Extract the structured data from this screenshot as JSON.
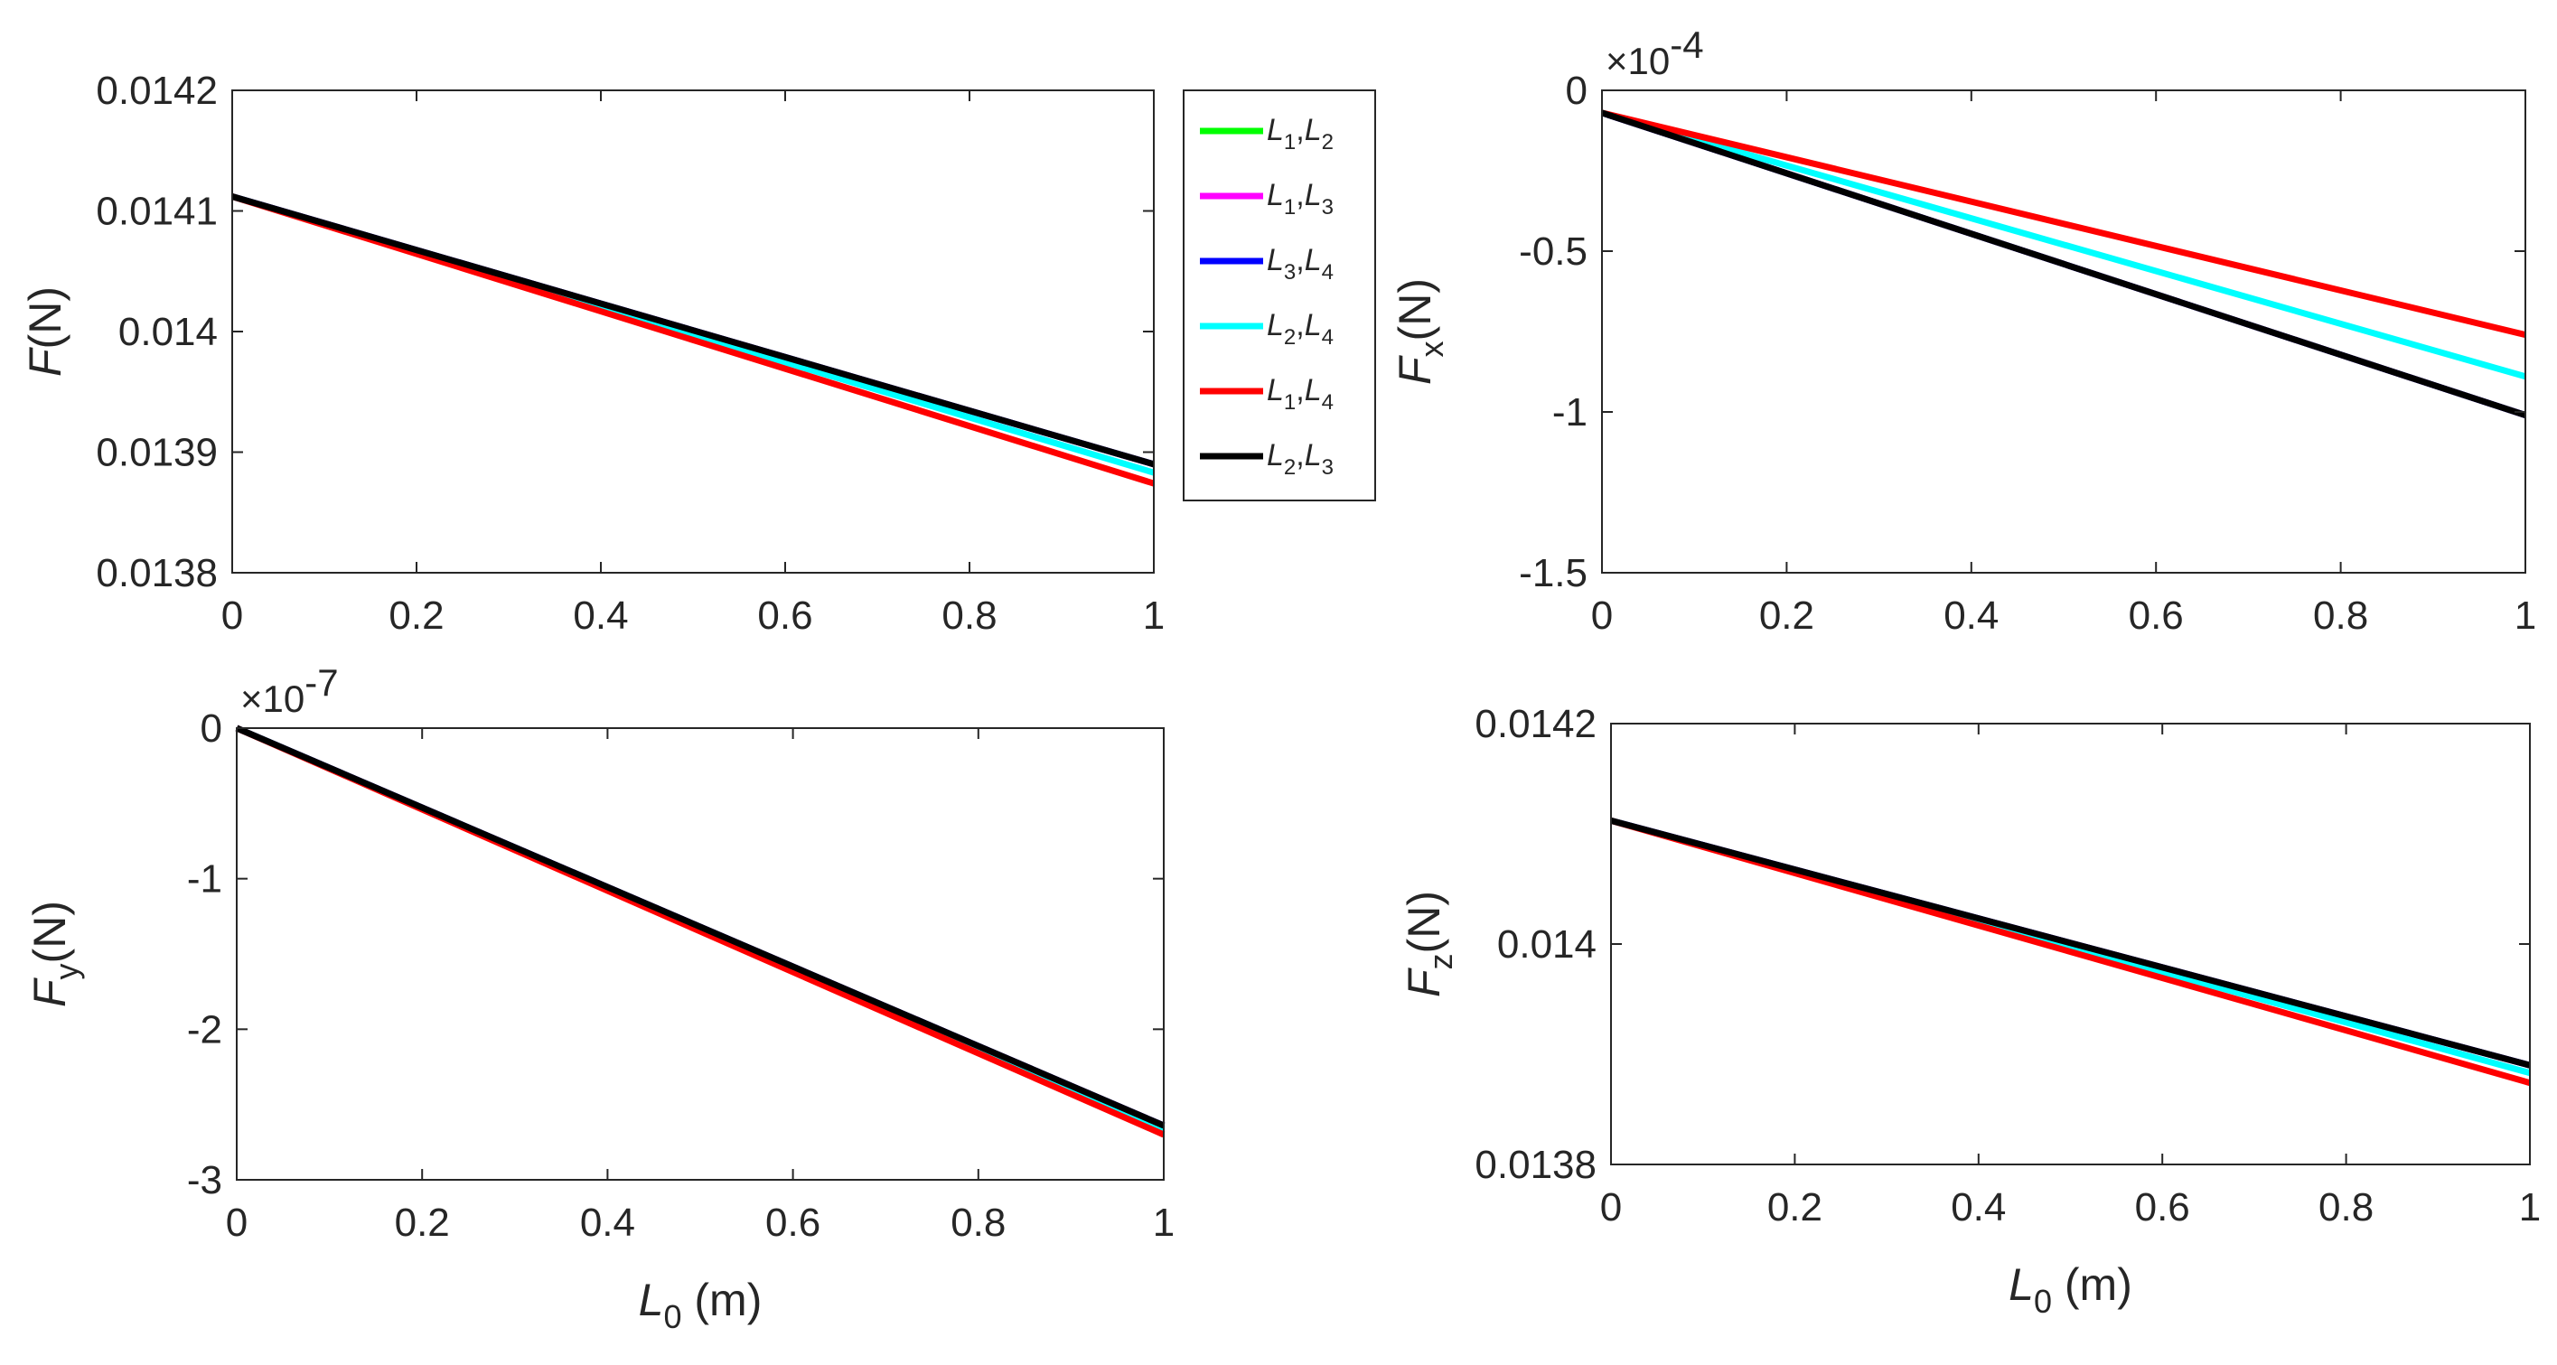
{
  "chart_data": [
    {
      "id": "F",
      "type": "line",
      "ylabel": {
        "main": "F",
        "unit": "(N)",
        "sub": ""
      },
      "xlabel": null,
      "xlim": [
        0,
        1
      ],
      "ylim": [
        0.0138,
        0.0142
      ],
      "xticks": [
        0,
        0.2,
        0.4,
        0.6,
        0.8,
        1
      ],
      "xtick_labels": [
        "0",
        "0.2",
        "0.4",
        "0.6",
        "0.8",
        "1"
      ],
      "yticks": [
        0.0138,
        0.0139,
        0.014,
        0.0141,
        0.0142
      ],
      "ytick_labels": [
        "0.0138",
        "0.0139",
        "0.014",
        "0.0141",
        "0.0142"
      ],
      "exponent": null,
      "series": [
        {
          "name": "L1,L2",
          "color": "#00ff00",
          "x": [
            0,
            1
          ],
          "y": [
            0.014112,
            0.01389
          ]
        },
        {
          "name": "L1,L3",
          "color": "#ff00ff",
          "x": [
            0,
            1
          ],
          "y": [
            0.014112,
            0.01389
          ]
        },
        {
          "name": "L3,L4",
          "color": "#0000ff",
          "x": [
            0,
            1
          ],
          "y": [
            0.014112,
            0.01389
          ]
        },
        {
          "name": "L2,L4",
          "color": "#00ffff",
          "x": [
            0,
            1
          ],
          "y": [
            0.014112,
            0.013883
          ]
        },
        {
          "name": "L1,L4",
          "color": "#ff0000",
          "x": [
            0,
            1
          ],
          "y": [
            0.014112,
            0.013874
          ]
        },
        {
          "name": "L2,L3",
          "color": "#000000",
          "x": [
            0,
            1
          ],
          "y": [
            0.014112,
            0.01389
          ]
        }
      ]
    },
    {
      "id": "Fx",
      "type": "line",
      "ylabel": {
        "main": "F",
        "unit": "(N)",
        "sub": "x"
      },
      "xlabel": null,
      "xlim": [
        0,
        1
      ],
      "ylim": [
        -1.5,
        0
      ],
      "xticks": [
        0,
        0.2,
        0.4,
        0.6,
        0.8,
        1
      ],
      "xtick_labels": [
        "0",
        "0.2",
        "0.4",
        "0.6",
        "0.8",
        "1"
      ],
      "yticks": [
        -1.5,
        -1,
        -0.5,
        0
      ],
      "ytick_labels": [
        "-1.5",
        "-1",
        "-0.5",
        "0"
      ],
      "exponent": {
        "base": "×10",
        "power": "-4"
      },
      "series": [
        {
          "name": "L1,L2",
          "color": "#00ff00",
          "x": [
            0,
            1
          ],
          "y": [
            -0.07,
            -1.01
          ]
        },
        {
          "name": "L1,L3",
          "color": "#ff00ff",
          "x": [
            0,
            1
          ],
          "y": [
            -0.07,
            -1.01
          ]
        },
        {
          "name": "L3,L4",
          "color": "#0000ff",
          "x": [
            0,
            1
          ],
          "y": [
            -0.07,
            -1.01
          ]
        },
        {
          "name": "L2,L4",
          "color": "#00ffff",
          "x": [
            0,
            1
          ],
          "y": [
            -0.07,
            -0.89
          ]
        },
        {
          "name": "L1,L4",
          "color": "#ff0000",
          "x": [
            0,
            1
          ],
          "y": [
            -0.07,
            -0.76
          ]
        },
        {
          "name": "L2,L3",
          "color": "#000000",
          "x": [
            0,
            1
          ],
          "y": [
            -0.07,
            -1.01
          ]
        }
      ]
    },
    {
      "id": "Fy",
      "type": "line",
      "ylabel": {
        "main": "F",
        "unit": "(N)",
        "sub": "y"
      },
      "xlabel": {
        "main": "L",
        "sub": "0",
        "unit": "(m)"
      },
      "xlim": [
        0,
        1
      ],
      "ylim": [
        -3,
        0
      ],
      "xticks": [
        0,
        0.2,
        0.4,
        0.6,
        0.8,
        1
      ],
      "xtick_labels": [
        "0",
        "0.2",
        "0.4",
        "0.6",
        "0.8",
        "1"
      ],
      "yticks": [
        -3,
        -2,
        -1,
        0
      ],
      "ytick_labels": [
        "-3",
        "-2",
        "-1",
        "0"
      ],
      "exponent": {
        "base": "×10",
        "power": "-7"
      },
      "series": [
        {
          "name": "L1,L2",
          "color": "#00ff00",
          "x": [
            0,
            1
          ],
          "y": [
            0,
            -2.64
          ]
        },
        {
          "name": "L1,L3",
          "color": "#ff00ff",
          "x": [
            0,
            1
          ],
          "y": [
            0,
            -2.64
          ]
        },
        {
          "name": "L3,L4",
          "color": "#0000ff",
          "x": [
            0,
            1
          ],
          "y": [
            0,
            -2.64
          ]
        },
        {
          "name": "L2,L4",
          "color": "#00ffff",
          "x": [
            0,
            1
          ],
          "y": [
            0,
            -2.66
          ]
        },
        {
          "name": "L1,L4",
          "color": "#ff0000",
          "x": [
            0,
            1
          ],
          "y": [
            0,
            -2.7
          ]
        },
        {
          "name": "L2,L3",
          "color": "#000000",
          "x": [
            0,
            1
          ],
          "y": [
            0,
            -2.64
          ]
        }
      ]
    },
    {
      "id": "Fz",
      "type": "line",
      "ylabel": {
        "main": "F",
        "unit": "(N)",
        "sub": "z"
      },
      "xlabel": {
        "main": "L",
        "sub": "0",
        "unit": "(m)"
      },
      "xlim": [
        0,
        1
      ],
      "ylim": [
        0.0138,
        0.0142
      ],
      "xticks": [
        0,
        0.2,
        0.4,
        0.6,
        0.8,
        1
      ],
      "xtick_labels": [
        "0",
        "0.2",
        "0.4",
        "0.6",
        "0.8",
        "1"
      ],
      "yticks": [
        0.0138,
        0.014,
        0.0142
      ],
      "ytick_labels": [
        "0.0138",
        "0.014",
        "0.0142"
      ],
      "exponent": null,
      "series": [
        {
          "name": "L1,L2",
          "color": "#00ff00",
          "x": [
            0,
            1
          ],
          "y": [
            0.014112,
            0.01389
          ]
        },
        {
          "name": "L1,L3",
          "color": "#ff00ff",
          "x": [
            0,
            1
          ],
          "y": [
            0.014112,
            0.01389
          ]
        },
        {
          "name": "L3,L4",
          "color": "#0000ff",
          "x": [
            0,
            1
          ],
          "y": [
            0.014112,
            0.01389
          ]
        },
        {
          "name": "L2,L4",
          "color": "#00ffff",
          "x": [
            0,
            1
          ],
          "y": [
            0.014112,
            0.013883
          ]
        },
        {
          "name": "L1,L4",
          "color": "#ff0000",
          "x": [
            0,
            1
          ],
          "y": [
            0.014112,
            0.013874
          ]
        },
        {
          "name": "L2,L3",
          "color": "#000000",
          "x": [
            0,
            1
          ],
          "y": [
            0.014112,
            0.01389
          ]
        }
      ]
    }
  ],
  "legend": {
    "placement": "right of top-left panel",
    "entries": [
      {
        "a": "L",
        "a_sub": "1",
        "sep": ",",
        "b": "L",
        "b_sub": "2",
        "color": "#00ff00"
      },
      {
        "a": "L",
        "a_sub": "1",
        "sep": ",",
        "b": "L",
        "b_sub": "3",
        "color": "#ff00ff"
      },
      {
        "a": "L",
        "a_sub": "3",
        "sep": ",",
        "b": "L",
        "b_sub": "4",
        "color": "#0000ff"
      },
      {
        "a": "L",
        "a_sub": "2",
        "sep": ",",
        "b": "L",
        "b_sub": "4",
        "color": "#00ffff"
      },
      {
        "a": "L",
        "a_sub": "1",
        "sep": ",",
        "b": "L",
        "b_sub": "4",
        "color": "#ff0000"
      },
      {
        "a": "L",
        "a_sub": "2",
        "sep": ",",
        "b": "L",
        "b_sub": "3",
        "color": "#000000"
      }
    ]
  }
}
